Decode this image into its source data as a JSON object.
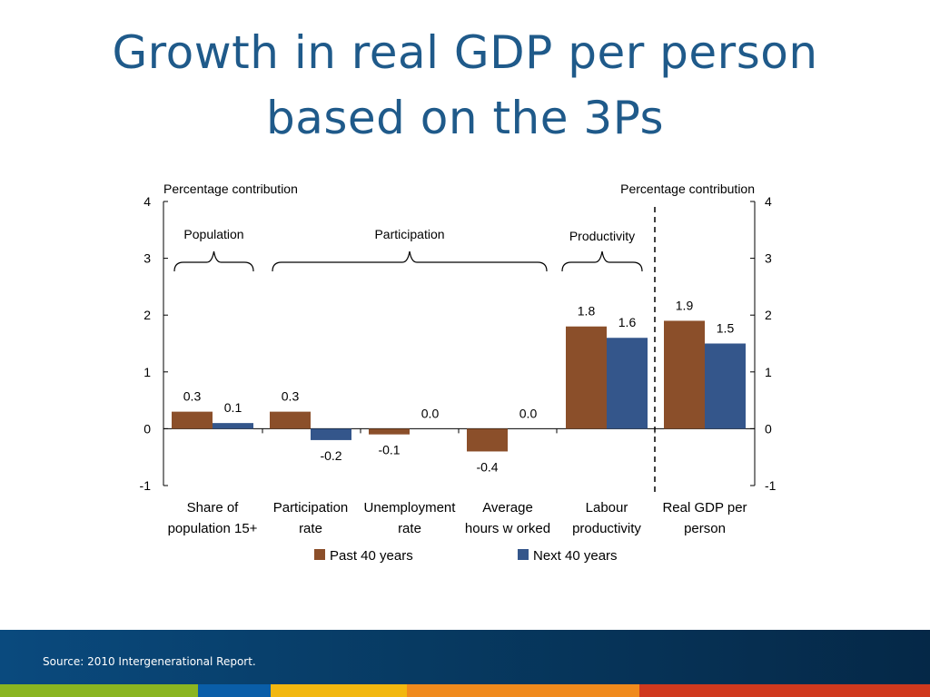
{
  "slide": {
    "title_line1": "Growth in real GDP per person",
    "title_line2": "based on the 3Ps",
    "source": "Source: 2010 Intergenerational Report."
  },
  "colors": {
    "title": "#1f5a8a",
    "past": "#8b4f2a",
    "next": "#34568b",
    "footer_band": "#073a62",
    "strip": [
      "#8ab520",
      "#0a5ea8",
      "#f2b70f",
      "#f08a1c",
      "#d0391e"
    ]
  },
  "chart_data": {
    "type": "bar",
    "left_axis_label": "Percentage contribution",
    "right_axis_label": "Percentage contribution",
    "ylim": [
      -1,
      4
    ],
    "yticks": [
      -1,
      0,
      1,
      2,
      3,
      4
    ],
    "categories": [
      [
        "Share of",
        "population 15+"
      ],
      [
        "Participation",
        "rate"
      ],
      [
        "Unemployment",
        "rate"
      ],
      [
        "Average",
        "hours w orked"
      ],
      [
        "Labour",
        "productivity"
      ],
      [
        "Real GDP per",
        "person"
      ]
    ],
    "series": [
      {
        "name": "Past 40 years",
        "values": [
          0.3,
          0.3,
          -0.1,
          -0.4,
          1.8,
          1.9
        ],
        "labels": [
          "0.3",
          "0.3",
          "-0.1",
          "-0.4",
          "1.8",
          "1.9"
        ]
      },
      {
        "name": "Next 40 years",
        "values": [
          0.1,
          -0.2,
          0.0,
          0.0,
          1.6,
          1.5
        ],
        "labels": [
          "0.1",
          "-0.2",
          "0.0",
          "0.0",
          "1.6",
          "1.5"
        ]
      }
    ],
    "groups": [
      {
        "label": "Population",
        "categories": [
          0
        ]
      },
      {
        "label": "Participation",
        "categories": [
          1,
          2,
          3
        ]
      },
      {
        "label": "Productivity",
        "categories": [
          4
        ]
      }
    ],
    "legend": "bottom",
    "grid": false
  }
}
